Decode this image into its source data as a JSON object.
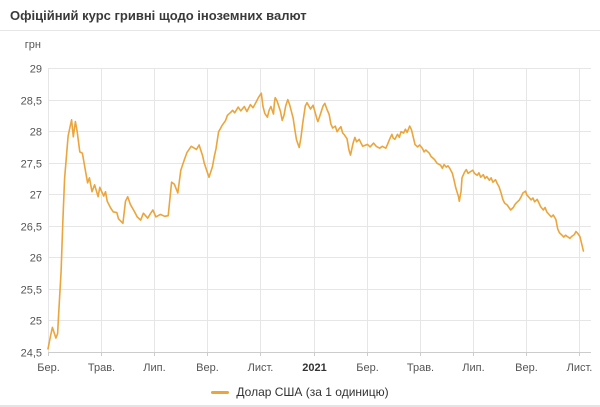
{
  "header": {
    "title": "Офіційний курс гривні щодо іноземних валют"
  },
  "colors": {
    "series": "#EBA53C",
    "gridline": "#e6e6e6",
    "axis_line": "#cccccc",
    "label_text": "#555555",
    "bold_label_text": "#333333",
    "title_text": "#3a3a3a"
  },
  "chart_data": {
    "type": "line",
    "title": "Офіційний курс гривні щодо іноземних валют",
    "unit_label": "грн",
    "ylim": [
      24.5,
      29
    ],
    "grid": true,
    "legend_position": "bottom",
    "y_ticks": [
      {
        "value": 29,
        "label": "29"
      },
      {
        "value": 28.5,
        "label": "28,5"
      },
      {
        "value": 28,
        "label": "28"
      },
      {
        "value": 27.5,
        "label": "27,5"
      },
      {
        "value": 27,
        "label": "27"
      },
      {
        "value": 26.5,
        "label": "26,5"
      },
      {
        "value": 26,
        "label": "26"
      },
      {
        "value": 25.5,
        "label": "25,5"
      },
      {
        "value": 25,
        "label": "25"
      },
      {
        "value": 24.5,
        "label": "24,5"
      }
    ],
    "x_ticks": [
      {
        "label": "Бер.",
        "m": 0,
        "bold": false
      },
      {
        "label": "Трав.",
        "m": 2,
        "bold": false
      },
      {
        "label": "Лип.",
        "m": 4,
        "bold": false
      },
      {
        "label": "Вер.",
        "m": 6,
        "bold": false
      },
      {
        "label": "Лист.",
        "m": 8,
        "bold": false
      },
      {
        "label": "2021",
        "m": 10,
        "bold": true
      },
      {
        "label": "Бер.",
        "m": 12,
        "bold": false
      },
      {
        "label": "Трав.",
        "m": 14,
        "bold": false
      },
      {
        "label": "Лип.",
        "m": 16,
        "bold": false
      },
      {
        "label": "Вер.",
        "m": 18,
        "bold": false
      },
      {
        "label": "Лист.",
        "m": 20,
        "bold": false
      }
    ],
    "series": [
      {
        "name": "Долар США (за 1 одиницю)",
        "color": "#EBA53C",
        "points": [
          [
            "2020-03-01",
            24.55
          ],
          [
            "2020-03-04",
            24.76
          ],
          [
            "2020-03-06",
            24.89
          ],
          [
            "2020-03-10",
            24.72
          ],
          [
            "2020-03-12",
            24.79
          ],
          [
            "2020-03-13",
            25.06
          ],
          [
            "2020-03-16",
            25.78
          ],
          [
            "2020-03-18",
            26.55
          ],
          [
            "2020-03-20",
            27.25
          ],
          [
            "2020-03-24",
            27.92
          ],
          [
            "2020-03-26",
            28.05
          ],
          [
            "2020-03-28",
            28.18
          ],
          [
            "2020-03-30",
            27.91
          ],
          [
            "2020-04-02",
            28.15
          ],
          [
            "2020-04-04",
            27.99
          ],
          [
            "2020-04-07",
            27.67
          ],
          [
            "2020-04-10",
            27.65
          ],
          [
            "2020-04-14",
            27.33
          ],
          [
            "2020-04-16",
            27.18
          ],
          [
            "2020-04-18",
            27.26
          ],
          [
            "2020-04-21",
            27.04
          ],
          [
            "2020-04-24",
            27.15
          ],
          [
            "2020-04-28",
            26.96
          ],
          [
            "2020-04-30",
            27.11
          ],
          [
            "2020-05-04",
            26.97
          ],
          [
            "2020-05-06",
            27.04
          ],
          [
            "2020-05-08",
            26.89
          ],
          [
            "2020-05-12",
            26.78
          ],
          [
            "2020-05-15",
            26.72
          ],
          [
            "2020-05-19",
            26.71
          ],
          [
            "2020-05-21",
            26.61
          ],
          [
            "2020-05-26",
            26.54
          ],
          [
            "2020-05-29",
            26.89
          ],
          [
            "2020-06-01",
            26.96
          ],
          [
            "2020-06-04",
            26.84
          ],
          [
            "2020-06-09",
            26.72
          ],
          [
            "2020-06-12",
            26.64
          ],
          [
            "2020-06-16",
            26.59
          ],
          [
            "2020-06-19",
            26.7
          ],
          [
            "2020-06-24",
            26.62
          ],
          [
            "2020-06-27",
            26.69
          ],
          [
            "2020-06-30",
            26.75
          ],
          [
            "2020-07-03",
            26.64
          ],
          [
            "2020-07-08",
            26.68
          ],
          [
            "2020-07-13",
            26.65
          ],
          [
            "2020-07-17",
            26.66
          ],
          [
            "2020-07-21",
            27.19
          ],
          [
            "2020-07-24",
            27.16
          ],
          [
            "2020-07-28",
            27.02
          ],
          [
            "2020-08-01",
            27.38
          ],
          [
            "2020-08-05",
            27.54
          ],
          [
            "2020-08-08",
            27.66
          ],
          [
            "2020-08-13",
            27.76
          ],
          [
            "2020-08-19",
            27.71
          ],
          [
            "2020-08-22",
            27.78
          ],
          [
            "2020-08-26",
            27.61
          ],
          [
            "2020-08-28",
            27.49
          ],
          [
            "2020-09-03",
            27.27
          ],
          [
            "2020-09-07",
            27.44
          ],
          [
            "2020-09-09",
            27.6
          ],
          [
            "2020-09-11",
            27.72
          ],
          [
            "2020-09-14",
            27.99
          ],
          [
            "2020-09-16",
            28.04
          ],
          [
            "2020-09-18",
            28.09
          ],
          [
            "2020-09-22",
            28.17
          ],
          [
            "2020-09-24",
            28.25
          ],
          [
            "2020-09-28",
            28.3
          ],
          [
            "2020-09-30",
            28.33
          ],
          [
            "2020-10-02",
            28.29
          ],
          [
            "2020-10-06",
            28.38
          ],
          [
            "2020-10-09",
            28.32
          ],
          [
            "2020-10-13",
            28.39
          ],
          [
            "2020-10-16",
            28.31
          ],
          [
            "2020-10-20",
            28.42
          ],
          [
            "2020-10-23",
            28.37
          ],
          [
            "2020-10-27",
            28.47
          ],
          [
            "2020-10-29",
            28.53
          ],
          [
            "2020-11-02",
            28.6
          ],
          [
            "2020-11-04",
            28.39
          ],
          [
            "2020-11-06",
            28.28
          ],
          [
            "2020-11-09",
            28.22
          ],
          [
            "2020-11-11",
            28.33
          ],
          [
            "2020-11-13",
            28.39
          ],
          [
            "2020-11-16",
            28.27
          ],
          [
            "2020-11-17",
            28.45
          ],
          [
            "2020-11-18",
            28.53
          ],
          [
            "2020-11-20",
            28.48
          ],
          [
            "2020-11-24",
            28.31
          ],
          [
            "2020-11-26",
            28.17
          ],
          [
            "2020-11-28",
            28.25
          ],
          [
            "2020-11-30",
            28.4
          ],
          [
            "2020-12-02",
            28.5
          ],
          [
            "2020-12-04",
            28.42
          ],
          [
            "2020-12-08",
            28.21
          ],
          [
            "2020-12-10",
            28.03
          ],
          [
            "2020-12-12",
            27.86
          ],
          [
            "2020-12-15",
            27.74
          ],
          [
            "2020-12-17",
            27.89
          ],
          [
            "2020-12-19",
            28.12
          ],
          [
            "2020-12-22",
            28.4
          ],
          [
            "2020-12-24",
            28.45
          ],
          [
            "2020-12-28",
            28.35
          ],
          [
            "2020-12-31",
            28.41
          ],
          [
            "2021-01-05",
            28.19
          ],
          [
            "2021-01-06",
            28.15
          ],
          [
            "2021-01-08",
            28.23
          ],
          [
            "2021-01-12",
            28.4
          ],
          [
            "2021-01-14",
            28.44
          ],
          [
            "2021-01-16",
            28.36
          ],
          [
            "2021-01-19",
            28.26
          ],
          [
            "2021-01-21",
            28.11
          ],
          [
            "2021-01-23",
            28.05
          ],
          [
            "2021-01-26",
            28.08
          ],
          [
            "2021-01-28",
            27.99
          ],
          [
            "2021-01-30",
            28.03
          ],
          [
            "2021-02-02",
            28.07
          ],
          [
            "2021-02-04",
            27.97
          ],
          [
            "2021-02-06",
            27.94
          ],
          [
            "2021-02-09",
            27.88
          ],
          [
            "2021-02-10",
            27.8
          ],
          [
            "2021-02-11",
            27.71
          ],
          [
            "2021-02-13",
            27.62
          ],
          [
            "2021-02-16",
            27.81
          ],
          [
            "2021-02-18",
            27.9
          ],
          [
            "2021-02-20",
            27.83
          ],
          [
            "2021-02-23",
            27.87
          ],
          [
            "2021-02-25",
            27.81
          ],
          [
            "2021-02-27",
            27.76
          ],
          [
            "2021-03-02",
            27.79
          ],
          [
            "2021-03-05",
            27.75
          ],
          [
            "2021-03-09",
            27.81
          ],
          [
            "2021-03-12",
            27.76
          ],
          [
            "2021-03-16",
            27.73
          ],
          [
            "2021-03-19",
            27.76
          ],
          [
            "2021-03-23",
            27.73
          ],
          [
            "2021-03-25",
            27.79
          ],
          [
            "2021-03-27",
            27.86
          ],
          [
            "2021-03-30",
            27.95
          ],
          [
            "2021-04-01",
            27.89
          ],
          [
            "2021-04-03",
            27.87
          ],
          [
            "2021-04-06",
            27.95
          ],
          [
            "2021-04-08",
            27.9
          ],
          [
            "2021-04-10",
            27.99
          ],
          [
            "2021-04-13",
            27.97
          ],
          [
            "2021-04-15",
            28.03
          ],
          [
            "2021-04-17",
            27.98
          ],
          [
            "2021-04-20",
            28.08
          ],
          [
            "2021-04-22",
            28.02
          ],
          [
            "2021-04-26",
            27.79
          ],
          [
            "2021-04-29",
            27.75
          ],
          [
            "2021-05-01",
            27.78
          ],
          [
            "2021-05-04",
            27.73
          ],
          [
            "2021-05-06",
            27.67
          ],
          [
            "2021-05-08",
            27.7
          ],
          [
            "2021-05-12",
            27.65
          ],
          [
            "2021-05-14",
            27.6
          ],
          [
            "2021-05-18",
            27.55
          ],
          [
            "2021-05-21",
            27.49
          ],
          [
            "2021-05-25",
            27.46
          ],
          [
            "2021-05-27",
            27.41
          ],
          [
            "2021-05-29",
            27.47
          ],
          [
            "2021-06-01",
            27.43
          ],
          [
            "2021-06-03",
            27.45
          ],
          [
            "2021-06-05",
            27.41
          ],
          [
            "2021-06-08",
            27.33
          ],
          [
            "2021-06-10",
            27.22
          ],
          [
            "2021-06-12",
            27.1
          ],
          [
            "2021-06-15",
            26.96
          ],
          [
            "2021-06-16",
            26.89
          ],
          [
            "2021-06-18",
            27.05
          ],
          [
            "2021-06-19",
            27.26
          ],
          [
            "2021-06-22",
            27.35
          ],
          [
            "2021-06-24",
            27.39
          ],
          [
            "2021-06-26",
            27.33
          ],
          [
            "2021-06-29",
            27.36
          ],
          [
            "2021-07-01",
            27.38
          ],
          [
            "2021-07-03",
            27.33
          ],
          [
            "2021-07-06",
            27.3
          ],
          [
            "2021-07-08",
            27.34
          ],
          [
            "2021-07-10",
            27.27
          ],
          [
            "2021-07-13",
            27.31
          ],
          [
            "2021-07-15",
            27.25
          ],
          [
            "2021-07-17",
            27.28
          ],
          [
            "2021-07-20",
            27.22
          ],
          [
            "2021-07-22",
            27.26
          ],
          [
            "2021-07-24",
            27.19
          ],
          [
            "2021-07-27",
            27.23
          ],
          [
            "2021-07-29",
            27.17
          ],
          [
            "2021-07-31",
            27.12
          ],
          [
            "2021-08-03",
            27.02
          ],
          [
            "2021-08-05",
            26.92
          ],
          [
            "2021-08-07",
            26.86
          ],
          [
            "2021-08-10",
            26.83
          ],
          [
            "2021-08-12",
            26.79
          ],
          [
            "2021-08-14",
            26.75
          ],
          [
            "2021-08-17",
            26.79
          ],
          [
            "2021-08-19",
            26.84
          ],
          [
            "2021-08-21",
            26.87
          ],
          [
            "2021-08-24",
            26.91
          ],
          [
            "2021-08-26",
            26.96
          ],
          [
            "2021-08-28",
            27.02
          ],
          [
            "2021-08-31",
            27.05
          ],
          [
            "2021-09-02",
            26.99
          ],
          [
            "2021-09-04",
            26.96
          ],
          [
            "2021-09-07",
            26.91
          ],
          [
            "2021-09-09",
            26.94
          ],
          [
            "2021-09-11",
            26.88
          ],
          [
            "2021-09-14",
            26.92
          ],
          [
            "2021-09-16",
            26.86
          ],
          [
            "2021-09-18",
            26.8
          ],
          [
            "2021-09-21",
            26.75
          ],
          [
            "2021-09-23",
            26.79
          ],
          [
            "2021-09-25",
            26.72
          ],
          [
            "2021-09-28",
            26.67
          ],
          [
            "2021-09-30",
            26.64
          ],
          [
            "2021-10-02",
            26.67
          ],
          [
            "2021-10-05",
            26.6
          ],
          [
            "2021-10-07",
            26.45
          ],
          [
            "2021-10-09",
            26.39
          ],
          [
            "2021-10-12",
            26.35
          ],
          [
            "2021-10-14",
            26.32
          ],
          [
            "2021-10-16",
            26.35
          ],
          [
            "2021-10-19",
            26.32
          ],
          [
            "2021-10-21",
            26.3
          ],
          [
            "2021-10-23",
            26.33
          ],
          [
            "2021-10-26",
            26.36
          ],
          [
            "2021-10-28",
            26.41
          ],
          [
            "2021-10-30",
            26.38
          ],
          [
            "2021-11-02",
            26.33
          ],
          [
            "2021-11-03",
            26.28
          ],
          [
            "2021-11-04",
            26.22
          ],
          [
            "2021-11-05",
            26.16
          ],
          [
            "2021-11-06",
            26.1
          ]
        ]
      }
    ]
  }
}
